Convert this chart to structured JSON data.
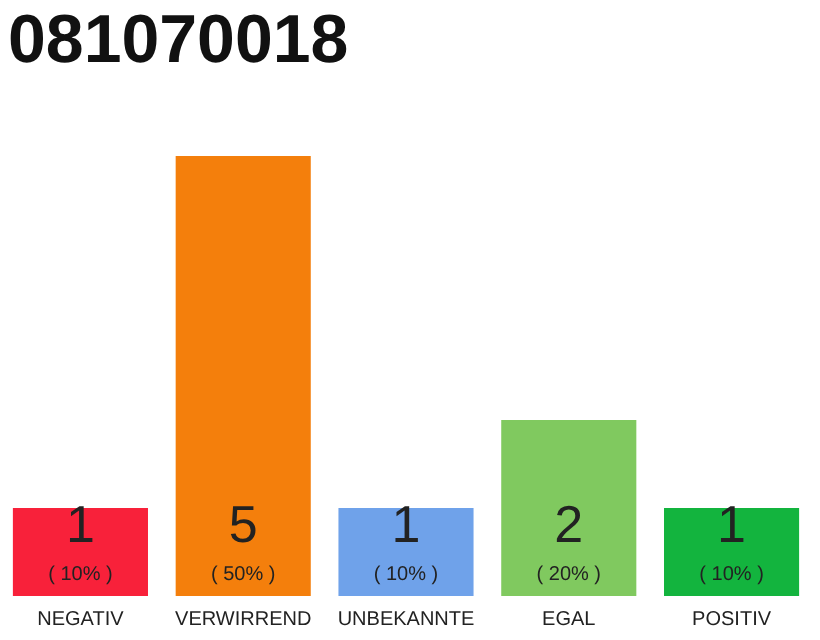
{
  "chart_data": {
    "type": "bar",
    "title": "081070018",
    "categories": [
      "NEGATIV",
      "VERWIRREND",
      "UNBEKANNTE",
      "EGAL",
      "POSITIV"
    ],
    "values": [
      1,
      5,
      1,
      2,
      1
    ],
    "colors": [
      "#f8213a",
      "#f47f0c",
      "#6fa2ea",
      "#80c95f",
      "#13b43e"
    ],
    "tick_labels": "x",
    "value_labels": [
      "1",
      "5",
      "1",
      "2",
      "1"
    ],
    "annotations": [
      "( 10% )",
      "( 50% )",
      "( 10% )",
      "( 20% )",
      "( 10% )"
    ]
  }
}
